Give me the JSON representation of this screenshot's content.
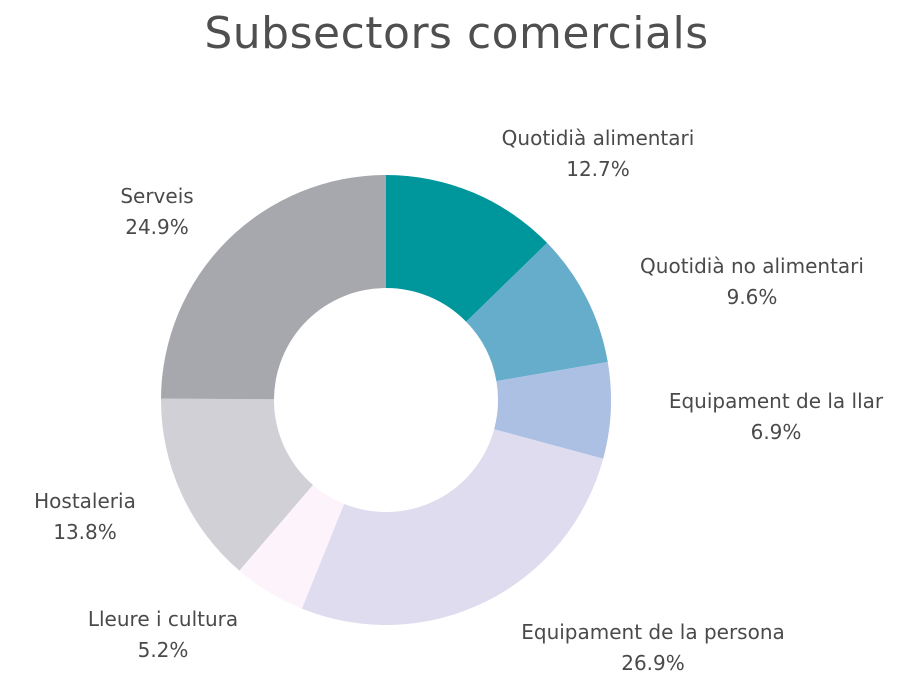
{
  "chart_data": {
    "type": "pie",
    "title": "Subsectors comercials",
    "slices": [
      {
        "label": "Quotidià alimentari",
        "value": 12.7,
        "display": "12.7%",
        "color": "#00979c"
      },
      {
        "label": "Quotidià no alimentari",
        "value": 9.6,
        "display": "9.6%",
        "color": "#66adcb"
      },
      {
        "label": "Equipament de la llar",
        "value": 6.9,
        "display": "6.9%",
        "color": "#abc0e2"
      },
      {
        "label": "Equipament de la persona",
        "value": 26.9,
        "display": "26.9%",
        "color": "#dfdcf0"
      },
      {
        "label": "Lleure i cultura",
        "value": 5.2,
        "display": "5.2%",
        "color": "#fdf3fb"
      },
      {
        "label": "Hostaleria",
        "value": 13.8,
        "display": "13.8%",
        "color": "#d2d0d7"
      },
      {
        "label": "Serveis",
        "value": 24.9,
        "display": "24.9%",
        "color": "#a7a7ae"
      }
    ],
    "legend": "none",
    "style": "donut"
  }
}
